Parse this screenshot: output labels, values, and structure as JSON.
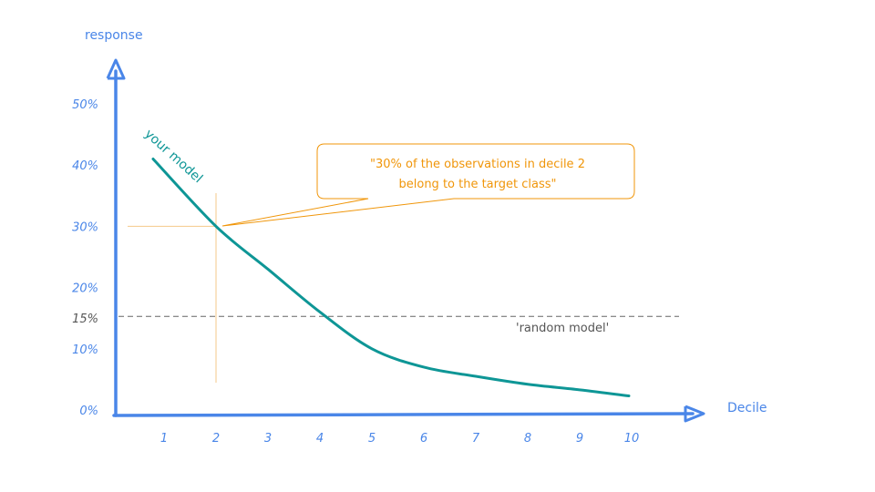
{
  "chart_data": {
    "type": "line",
    "title": "",
    "xlabel": "Decile",
    "ylabel": "response",
    "x": [
      1,
      2,
      3,
      4,
      5,
      6,
      7,
      8,
      9,
      10
    ],
    "x_tick_labels": [
      "1",
      "2",
      "3",
      "4",
      "5",
      "6",
      "7",
      "8",
      "9",
      "10"
    ],
    "y_tick_labels": [
      "0%",
      "10%",
      "15%",
      "20%",
      "30%",
      "40%",
      "50%"
    ],
    "ylim": [
      0,
      50
    ],
    "series": [
      {
        "name": "your model",
        "values": [
          41,
          30,
          23,
          16,
          10,
          7,
          5.5,
          4.2,
          3.3,
          2.3
        ],
        "color": "#0e9696"
      }
    ],
    "reference_line": {
      "label": "'random model'",
      "value": 15,
      "color": "#666666"
    },
    "annotation": {
      "text_line1": "\"30% of the observations in decile 2",
      "text_line2": "belong to the target class\"",
      "x": 2,
      "y": 30,
      "color": "#f0960a"
    },
    "colors": {
      "axis": "#4a86e8",
      "curve": "#0e9696",
      "annotation": "#f0960a",
      "reference": "#666666"
    }
  }
}
